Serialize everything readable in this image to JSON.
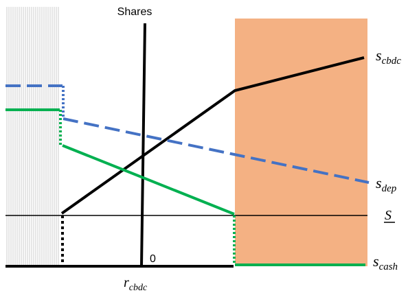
{
  "labels": {
    "shares_axis": "Shares",
    "zero": "0",
    "x_axis_base": "r",
    "x_axis_sub": "cbdc",
    "s_cbdc_base": "s",
    "s_cbdc_sub": "cbdc",
    "s_dep_base": "s",
    "s_dep_sub": "dep",
    "s_lower_bound": "S",
    "s_cash_base": "s",
    "s_cash_sub": "cash"
  },
  "colors": {
    "axis": "#000000",
    "s_cbdc_line": "#000000",
    "s_dep_line": "#4472C4",
    "s_cash_line": "#00B050",
    "shaded_region": "#F4B183",
    "hatch_region": "#BFBFBF"
  }
}
